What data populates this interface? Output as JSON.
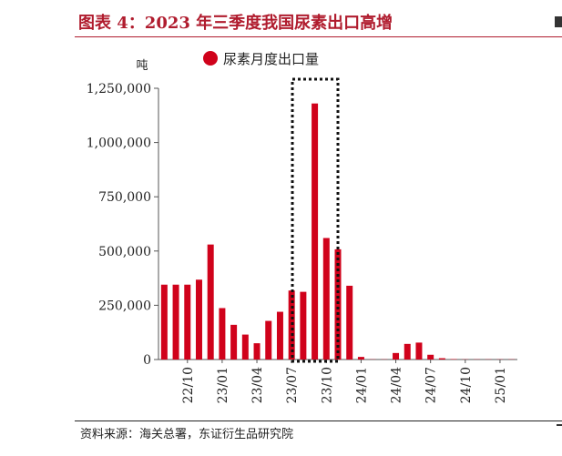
{
  "header": {
    "title": "图表 4：2023 年三季度我国尿素出口高增"
  },
  "footer": {
    "source": "资料来源：海关总署，东证衍生品研究院"
  },
  "chart_data": {
    "type": "bar",
    "ylabel": "吨",
    "ylim": [
      0,
      1250000
    ],
    "yticks": [
      0,
      250000,
      500000,
      750000,
      1000000,
      1250000
    ],
    "ytick_labels": [
      "0",
      "250,000",
      "500,000",
      "750,000",
      "1,000,000",
      "1,250,000"
    ],
    "xtick_labels": [
      "22/10",
      "23/01",
      "23/04",
      "23/07",
      "23/10",
      "24/01",
      "24/04",
      "24/07",
      "24/10",
      "25/01"
    ],
    "colors": {
      "bar": "#d0021b",
      "title": "#b01c2e"
    },
    "legend_position": "top-center",
    "highlight": {
      "from": "2023/08",
      "to": "2023/12",
      "style": "dotted-box"
    },
    "series": [
      {
        "name": "尿素月度出口量",
        "categories": [
          "2022/08",
          "2022/09",
          "2022/10",
          "2022/11",
          "2022/12",
          "2023/01",
          "2023/02",
          "2023/03",
          "2023/04",
          "2023/05",
          "2023/06",
          "2023/07",
          "2023/08",
          "2023/09",
          "2023/10",
          "2023/11",
          "2023/12",
          "2024/01",
          "2024/02",
          "2024/03",
          "2024/04",
          "2024/05",
          "2024/06",
          "2024/07",
          "2024/08",
          "2024/09",
          "2024/10",
          "2024/11",
          "2024/12",
          "2025/01",
          "2025/02"
        ],
        "values": [
          345000,
          345000,
          345000,
          368000,
          530000,
          237000,
          160000,
          115000,
          75000,
          178000,
          220000,
          318000,
          312000,
          1180000,
          560000,
          508000,
          340000,
          12000,
          1000,
          1000,
          30000,
          72000,
          78000,
          22000,
          6000,
          2000,
          1000,
          1000,
          1000,
          1000,
          1000
        ]
      }
    ]
  }
}
